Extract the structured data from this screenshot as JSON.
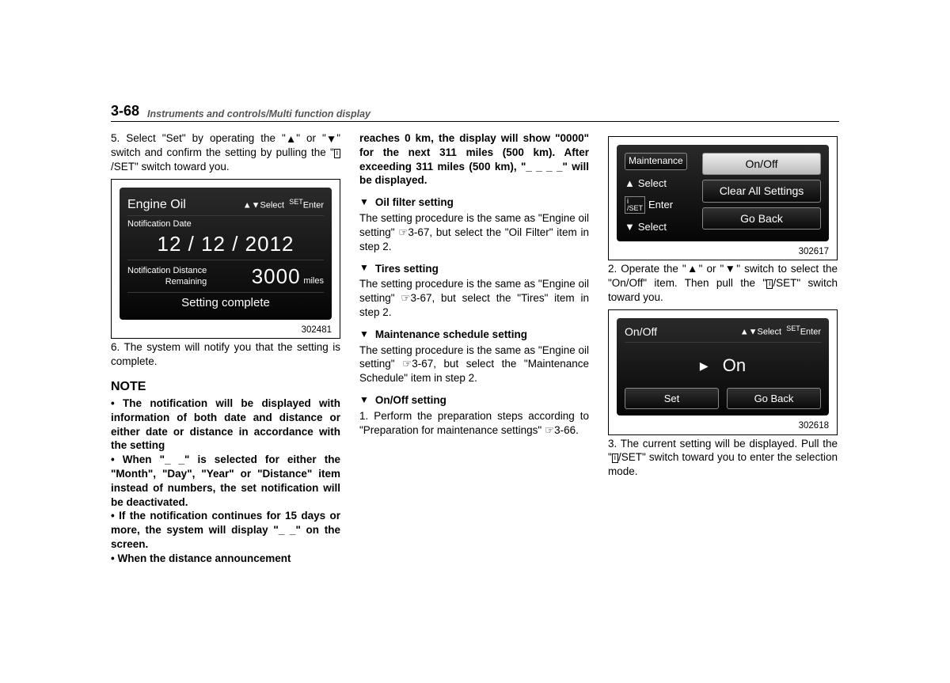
{
  "header": {
    "pageNumber": "3-68",
    "sectionTitle": "Instruments and controls/Multi function display"
  },
  "col1": {
    "step5a": "5. Select \"Set\" by operating the \"",
    "step5b": "\" or \"",
    "step5c": "\" switch and confirm the setting by pulling the \"",
    "step5d": "/SET\" switch toward you.",
    "fig1": {
      "title": "Engine Oil",
      "hintSelect": "Select",
      "hintEnter": "Enter",
      "hintSet": "SET",
      "dateLabel": "Notification Date",
      "date": "12 / 12 / 2012",
      "distLabelA": "Notification Distance",
      "distLabelB": "Remaining",
      "distValue": "3000",
      "distUnit": "miles",
      "complete": "Setting complete",
      "caption": "302481"
    },
    "step6": "6. The system will notify you that the setting is complete.",
    "noteTitle": "NOTE",
    "noteItems": [
      "The notification will be displayed with information of both date and distance or either date or distance in accordance with the setting",
      "When \"_ _\" is selected for either the \"Month\", \"Day\", \"Year\" or \"Distance\" item instead of numbers, the set notification will be deactivated.",
      "If the notification continues for 15 days or more, the system will display \"_ _\" on the screen.",
      "When the distance announcement"
    ]
  },
  "col2": {
    "contBold": "reaches 0 km, the display will show \"0000\" for the next 311 miles (500 km). After exceeding 311 miles (500 km), \"_ _ _ _\" will be displayed.",
    "h1": "Oil filter setting",
    "p1": "The setting procedure is the same as \"Engine oil setting\" ☞3-67, but select the \"Oil Filter\" item in step 2.",
    "h2": "Tires setting",
    "p2": "The setting procedure is the same as \"Engine oil setting\" ☞3-67, but select the \"Tires\" item in step 2.",
    "h3": "Maintenance schedule setting",
    "p3": "The setting procedure is the same as \"Engine oil setting\" ☞3-67, but select the \"Maintenance Schedule\" item in step 2.",
    "h4": "On/Off setting",
    "p4": "1. Perform the preparation steps according to \"Preparation for maintenance settings\" ☞3-66."
  },
  "col3": {
    "fig2": {
      "leftLabels": [
        "Maintenance",
        "Select",
        "Enter",
        "Select"
      ],
      "iSetTop": "i",
      "iSetBottom": "/SET",
      "options": [
        "On/Off",
        "Clear All Settings",
        "Go Back"
      ],
      "caption": "302617"
    },
    "step2a": "2. Operate the \"",
    "step2b": "\" or \"",
    "step2c": "\" switch to select the \"On/Off\" item. Then pull the \"",
    "step2d": "/SET\" switch toward you.",
    "fig3": {
      "title": "On/Off",
      "hintSelect": "Select",
      "hintSet": "SET",
      "hintEnter": "Enter",
      "value": "On",
      "btnSet": "Set",
      "btnBack": "Go Back",
      "caption": "302618"
    },
    "step3a": "3. The current setting will be displayed. Pull the \"",
    "step3b": "/SET\" switch toward you to enter the selection mode."
  }
}
